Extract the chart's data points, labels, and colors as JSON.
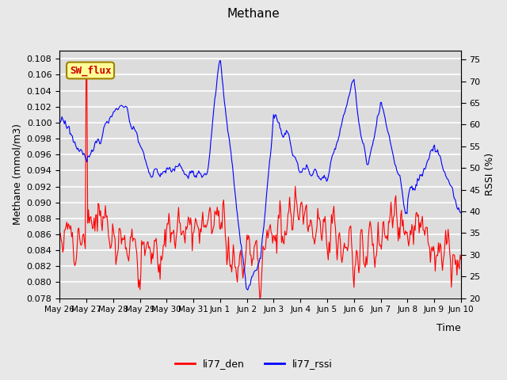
{
  "title": "Methane",
  "ylabel_left": "Methane (mmol/m3)",
  "ylabel_right": "RSSI (%)",
  "xlabel": "Time",
  "ylim_left": [
    0.078,
    0.109
  ],
  "ylim_right": [
    20,
    77
  ],
  "yticks_left": [
    0.078,
    0.08,
    0.082,
    0.084,
    0.086,
    0.088,
    0.09,
    0.092,
    0.094,
    0.096,
    0.098,
    0.1,
    0.102,
    0.104,
    0.106,
    0.108
  ],
  "yticks_right": [
    20,
    25,
    30,
    35,
    40,
    45,
    50,
    55,
    60,
    65,
    70,
    75
  ],
  "color_red": "#FF0000",
  "color_blue": "#0000FF",
  "bg_color": "#DCDCDC",
  "fig_bg_color": "#E8E8E8",
  "grid_color": "#FFFFFF",
  "annotation_text": "SW_flux",
  "annotation_bg": "#FFFF99",
  "annotation_border": "#A08000",
  "legend_labels": [
    "li77_den",
    "li77_rssi"
  ],
  "x_tick_labels": [
    "May 26",
    "May 27",
    "May 28",
    "May 29",
    "May 30",
    "May 31",
    "Jun 1",
    "Jun 2",
    "Jun 3",
    "Jun 4",
    "Jun 5",
    "Jun 6",
    "Jun 7",
    "Jun 8",
    "Jun 9",
    "Jun 10"
  ],
  "n_points": 500,
  "seed": 42
}
